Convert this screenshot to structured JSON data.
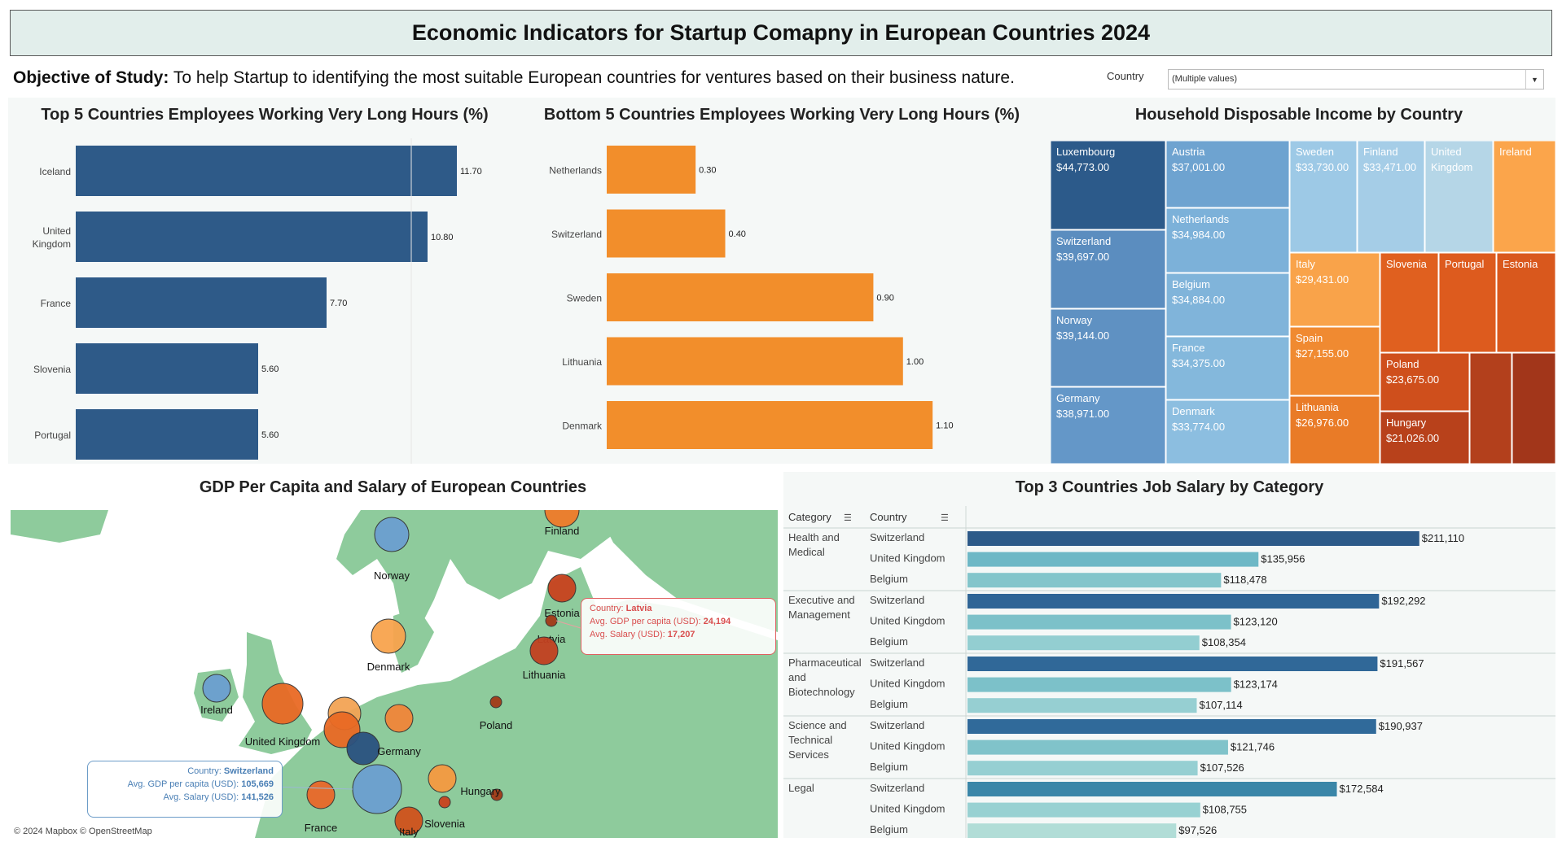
{
  "title": "Economic Indicators for Startup Comapny in European Countries 2024",
  "objective": {
    "label": "Objective of Study:",
    "text": " To help Startup to identifying the most suitable European countries for ventures based on their business nature."
  },
  "filter": {
    "label": "Country",
    "value": "(Multiple values)"
  },
  "chart_data": [
    {
      "id": "top5",
      "type": "bar",
      "title": "Top 5 Countries Employees Working Very Long Hours (%)",
      "categories": [
        "Iceland",
        "United Kingdom",
        "France",
        "Slovenia",
        "Portugal"
      ],
      "values": [
        11.7,
        10.8,
        7.7,
        5.6,
        5.6
      ],
      "value_labels": [
        "11.70",
        "10.80",
        "7.70",
        "5.60",
        "5.60"
      ],
      "xlim": [
        0,
        12
      ],
      "color": "#2e5a88"
    },
    {
      "id": "bottom5",
      "type": "bar",
      "title": "Bottom 5 Countries Employees Working Very Long Hours (%)",
      "categories": [
        "Netherlands",
        "Switzerland",
        "Sweden",
        "Lithuania",
        "Denmark"
      ],
      "values": [
        0.3,
        0.4,
        0.9,
        1.0,
        1.1
      ],
      "value_labels": [
        "0.30",
        "0.40",
        "0.90",
        "1.00",
        "1.10"
      ],
      "xlim": [
        0,
        1.16
      ],
      "color": "#f28e2b"
    },
    {
      "id": "treemap",
      "type": "treemap",
      "title": "Household Disposable Income by Country",
      "items": [
        {
          "country": "Luxembourg",
          "value": 44773,
          "label": "$44,773.00",
          "color": "#2c5a8a"
        },
        {
          "country": "Switzerland",
          "value": 39697,
          "label": "$39,697.00",
          "color": "#5b8dbf"
        },
        {
          "country": "Norway",
          "value": 39144,
          "label": "$39,144.00",
          "color": "#5f91c2"
        },
        {
          "country": "Germany",
          "value": 38971,
          "label": "$38,971.00",
          "color": "#6497c8"
        },
        {
          "country": "Austria",
          "value": 37001,
          "label": "$37,001.00",
          "color": "#6ea3d0"
        },
        {
          "country": "Netherlands",
          "value": 34984,
          "label": "$34,984.00",
          "color": "#7cb1d9"
        },
        {
          "country": "Belgium",
          "value": 34884,
          "label": "$34,884.00",
          "color": "#80b4da"
        },
        {
          "country": "France",
          "value": 34375,
          "label": "$34,375.00",
          "color": "#84b8dc"
        },
        {
          "country": "Denmark",
          "value": 33774,
          "label": "$33,774.00",
          "color": "#8cbee0"
        },
        {
          "country": "Sweden",
          "value": 33730,
          "label": "$33,730.00",
          "color": "#9dc9e6"
        },
        {
          "country": "Finland",
          "value": 33471,
          "label": "$33,471.00",
          "color": "#a5cde7"
        },
        {
          "country": "United Kingdom",
          "value": null,
          "label": "",
          "color": "#b5d6e7"
        },
        {
          "country": "Ireland",
          "value": null,
          "label": "",
          "color": "#fba54b"
        },
        {
          "country": "Italy",
          "value": 29431,
          "label": "$29,431.00",
          "color": "#f9a34a"
        },
        {
          "country": "Spain",
          "value": 27155,
          "label": "$27,155.00",
          "color": "#f08a31"
        },
        {
          "country": "Lithuania",
          "value": 26976,
          "label": "$26,976.00",
          "color": "#e97b27"
        },
        {
          "country": "Slovenia",
          "value": null,
          "label": "",
          "color": "#e0601f"
        },
        {
          "country": "Portugal",
          "value": null,
          "label": "",
          "color": "#dd5b1e"
        },
        {
          "country": "Estonia",
          "value": null,
          "label": "",
          "color": "#d9581d"
        },
        {
          "country": "Poland",
          "value": 23675,
          "label": "$23,675.00",
          "color": "#cf4f1c"
        },
        {
          "country": "Hungary",
          "value": 21026,
          "label": "$21,026.00",
          "color": "#b8411b"
        },
        {
          "country": "",
          "value": null,
          "label": "",
          "color": "#b3401c"
        },
        {
          "country": "",
          "value": null,
          "label": "",
          "color": "#a2361a"
        }
      ]
    },
    {
      "id": "salary",
      "type": "bar",
      "title": "Top 3 Countries Job Salary by Category",
      "headers": [
        "Category",
        "Country"
      ],
      "xlim": [
        0,
        215000
      ],
      "groups": [
        {
          "category": "Health and Medical",
          "rows": [
            {
              "country": "Switzerland",
              "value": 211110,
              "label": "$211,110",
              "color": "#2d5a89"
            },
            {
              "country": "United Kingdom",
              "value": 135956,
              "label": "$135,956",
              "color": "#6eb8c6"
            },
            {
              "country": "Belgium",
              "value": 118478,
              "label": "$118,478",
              "color": "#83c5cb"
            }
          ]
        },
        {
          "category": "Executive and Management",
          "rows": [
            {
              "country": "Switzerland",
              "value": 192292,
              "label": "$192,292",
              "color": "#2f6596"
            },
            {
              "country": "United Kingdom",
              "value": 123120,
              "label": "$123,120",
              "color": "#7cc1c9"
            },
            {
              "country": "Belgium",
              "value": 108354,
              "label": "$108,354",
              "color": "#93ced1"
            }
          ]
        },
        {
          "category": "Pharmaceutical and Biotechnology",
          "rows": [
            {
              "country": "Switzerland",
              "value": 191567,
              "label": "$191,567",
              "color": "#306898"
            },
            {
              "country": "United Kingdom",
              "value": 123174,
              "label": "$123,174",
              "color": "#7cc1c9"
            },
            {
              "country": "Belgium",
              "value": 107114,
              "label": "$107,114",
              "color": "#96cfd2"
            }
          ]
        },
        {
          "category": "Science and Technical Services",
          "rows": [
            {
              "country": "Switzerland",
              "value": 190937,
              "label": "$190,937",
              "color": "#306a9a"
            },
            {
              "country": "United Kingdom",
              "value": 121746,
              "label": "$121,746",
              "color": "#80c3ca"
            },
            {
              "country": "Belgium",
              "value": 107526,
              "label": "$107,526",
              "color": "#96cfd2"
            }
          ]
        },
        {
          "category": "Legal",
          "rows": [
            {
              "country": "Switzerland",
              "value": 172584,
              "label": "$172,584",
              "color": "#3a86a8"
            },
            {
              "country": "United Kingdom",
              "value": 108755,
              "label": "$108,755",
              "color": "#98d1d2"
            },
            {
              "country": "Belgium",
              "value": 97526,
              "label": "$97,526",
              "color": "#b1ddd7"
            }
          ]
        }
      ]
    },
    {
      "id": "map",
      "type": "scatter",
      "title": "GDP Per Capita and Salary of European Countries",
      "copyright": "© 2024 Mapbox © OpenStreetMap",
      "points": [
        {
          "country": "Norway",
          "color": "#6c9fd0",
          "size": "medium"
        },
        {
          "country": "Finland",
          "color": "#ef7b2a",
          "size": "medium"
        },
        {
          "country": "Estonia",
          "color": "#c8431e",
          "size": "small"
        },
        {
          "country": "Latvia",
          "color": "#a33a18",
          "size": "tiny"
        },
        {
          "country": "Lithuania",
          "color": "#c24020",
          "size": "small"
        },
        {
          "country": "Denmark",
          "color": "#f8a44e",
          "size": "medium"
        },
        {
          "country": "Ireland",
          "color": "#6c9fd0",
          "size": "small"
        },
        {
          "country": "United Kingdom",
          "color": "#e96a24",
          "size": "large"
        },
        {
          "country": "Germany",
          "color": "#f0863a",
          "size": "small"
        },
        {
          "country": "Poland",
          "color": "#a33a18",
          "size": "tiny"
        },
        {
          "country": "France",
          "color": "#e9692a",
          "size": "small"
        },
        {
          "country": "Hungary",
          "color": "#a33a18",
          "size": "tiny"
        },
        {
          "country": "Slovenia",
          "color": "#c8431e",
          "size": "tiny"
        },
        {
          "country": "Italy",
          "color": "#d0521c",
          "size": "small"
        },
        {
          "country": "Switzerland",
          "color": "#6c9fd0",
          "size": "xlarge"
        }
      ],
      "tooltips": [
        {
          "country_label": "Country:",
          "country": "Latvia",
          "gdp_label": "Avg. GDP per capita (USD):",
          "gdp": "24,194",
          "salary_label": "Avg. Salary (USD):",
          "salary": "17,207"
        },
        {
          "country_label": "Country:",
          "country": "Switzerland",
          "gdp_label": "Avg. GDP per capita (USD):",
          "gdp": "105,669",
          "salary_label": "Avg. Salary (USD):",
          "salary": "141,526"
        }
      ]
    }
  ]
}
